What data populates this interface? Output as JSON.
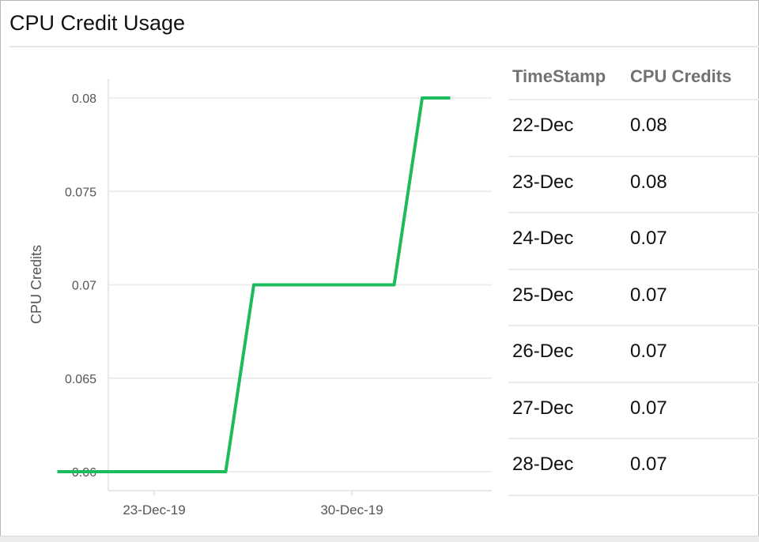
{
  "title": "CPU Credit Usage",
  "chart_data": {
    "type": "line",
    "title": "",
    "xlabel": "",
    "ylabel": "CPU Credits",
    "ylim": [
      0.06,
      0.08
    ],
    "yticks": [
      "0.06",
      "0.065",
      "0.07",
      "0.075",
      "0.08"
    ],
    "xticks": [
      "23-Dec-19",
      "30-Dec-19"
    ],
    "grid": "horizontal",
    "color": "#1dbb5a",
    "series": [
      {
        "points": [
          {
            "x": "2019-12-21",
            "y": 0.06
          },
          {
            "x": "2019-12-27",
            "y": 0.06
          },
          {
            "x": "2019-12-28",
            "y": 0.07
          },
          {
            "x": "2020-01-02",
            "y": 0.07
          },
          {
            "x": "2020-01-03",
            "y": 0.08
          },
          {
            "x": "2020-01-04",
            "y": 0.08
          }
        ]
      }
    ]
  },
  "table": {
    "headers": [
      "TimeStamp",
      "CPU Credits"
    ],
    "rows": [
      [
        "22-Dec",
        "0.08"
      ],
      [
        "23-Dec",
        "0.08"
      ],
      [
        "24-Dec",
        "0.07"
      ],
      [
        "25-Dec",
        "0.07"
      ],
      [
        "26-Dec",
        "0.07"
      ],
      [
        "27-Dec",
        "0.07"
      ],
      [
        "28-Dec",
        "0.07"
      ]
    ]
  }
}
